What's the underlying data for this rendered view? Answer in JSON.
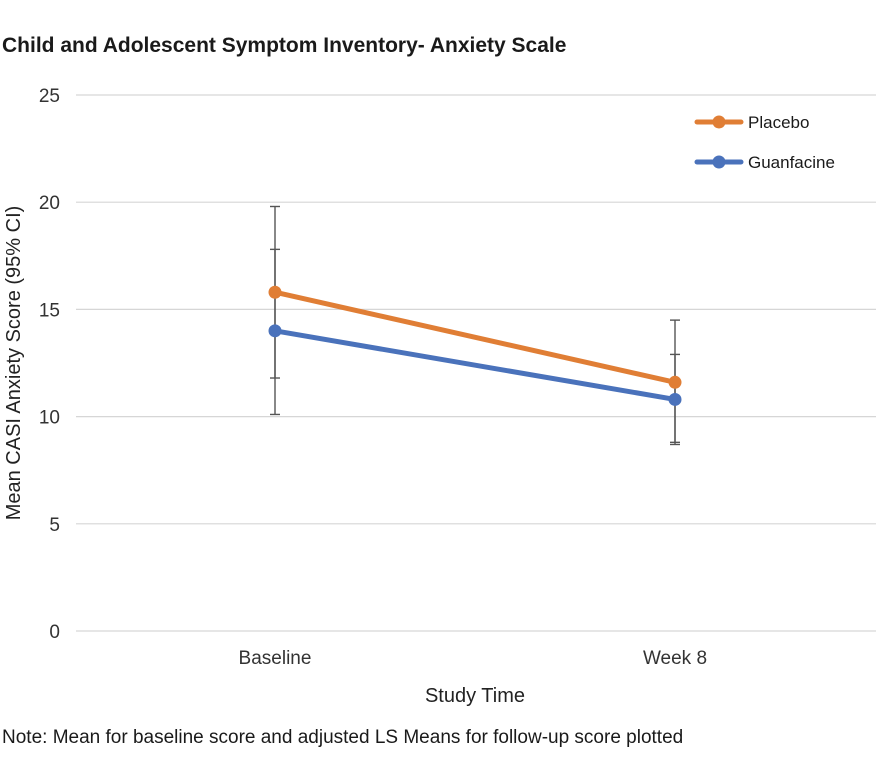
{
  "title": "Child and Adolescent Symptom Inventory- Anxiety Scale",
  "note": "Note: Mean for baseline score and adjusted LS Means for follow-up score plotted",
  "chart_data": {
    "type": "line",
    "categories": [
      "Baseline",
      "Week 8"
    ],
    "series": [
      {
        "name": "Placebo",
        "values": [
          15.8,
          11.6
        ],
        "color": "#e07e35",
        "ci_lower": [
          11.8,
          8.8
        ],
        "ci_upper": [
          19.8,
          14.5
        ]
      },
      {
        "name": "Guanfacine",
        "values": [
          14.0,
          10.8
        ],
        "color": "#4a72bb",
        "ci_lower": [
          10.1,
          8.7
        ],
        "ci_upper": [
          17.8,
          12.9
        ]
      }
    ],
    "xlabel": "Study Time",
    "ylabel": "Mean CASI Anxiety Score (95% CI)",
    "ylim": [
      0,
      25
    ],
    "yticks": [
      0,
      5,
      10,
      15,
      20,
      25
    ],
    "grid": true,
    "legend": "top-right"
  }
}
